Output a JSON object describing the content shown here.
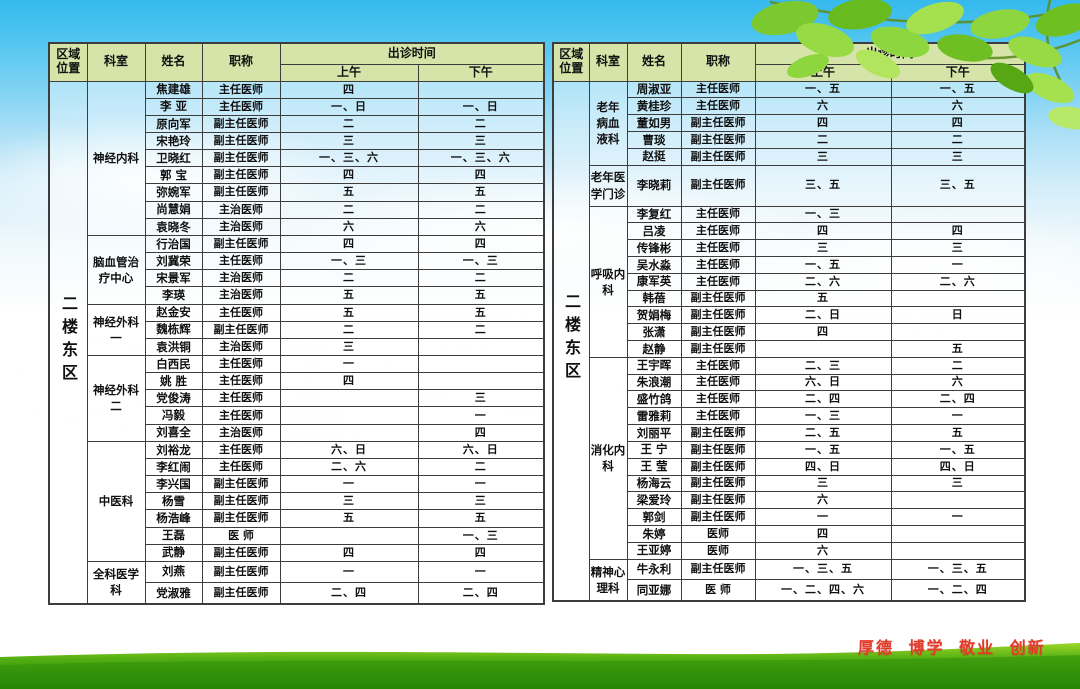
{
  "page": {
    "motto": "厚德 博学 敬业 创新"
  },
  "colors": {
    "header_bg": "#d6e4a9",
    "table_border": "#3d3d3d",
    "motto_red": "#e23b2b",
    "sky_top": "#35b9ed",
    "grass_green": "#3c9a0d",
    "leaf_green": "#7cc92f"
  },
  "table_headers": {
    "region": "区域\n位置",
    "dept": "科室",
    "name": "姓名",
    "title": "职称",
    "schedule": "出诊时间",
    "am": "上午",
    "pm": "下午"
  },
  "tables": [
    {
      "id": "left",
      "region": "二楼东区",
      "departments": [
        {
          "dept": "神经内科",
          "rows": [
            [
              "焦建雄",
              "主任医师",
              "四",
              ""
            ],
            [
              "李 亚",
              "主任医师",
              "一、日",
              "一、日"
            ],
            [
              "原向军",
              "副主任医师",
              "二",
              "二"
            ],
            [
              "宋艳玲",
              "副主任医师",
              "三",
              "三"
            ],
            [
              "卫晓红",
              "副主任医师",
              "一、三、六",
              "一、三、六"
            ],
            [
              "郭 宝",
              "副主任医师",
              "四",
              "四"
            ],
            [
              "弥婉军",
              "副主任医师",
              "五",
              "五"
            ],
            [
              "尚慧娟",
              "主治医师",
              "二",
              "二"
            ],
            [
              "袁晓冬",
              "主治医师",
              "六",
              "六"
            ]
          ]
        },
        {
          "dept": "脑血管治\n疗中心",
          "rows": [
            [
              "行治国",
              "副主任医师",
              "四",
              "四"
            ],
            [
              "刘冀荣",
              "主任医师",
              "一、三",
              "一、三"
            ],
            [
              "宋景军",
              "主治医师",
              "二",
              "二"
            ],
            [
              "李瑛",
              "主治医师",
              "五",
              "五"
            ]
          ]
        },
        {
          "dept": "神经外科\n一",
          "rows": [
            [
              "赵金安",
              "主任医师",
              "五",
              "五"
            ],
            [
              "魏栋辉",
              "副主任医师",
              "二",
              "二"
            ],
            [
              "袁洪铜",
              "主治医师",
              "三",
              ""
            ]
          ]
        },
        {
          "dept": "神经外科\n二",
          "rows": [
            [
              "白西民",
              "主任医师",
              "一",
              ""
            ],
            [
              "姚 胜",
              "主任医师",
              "四",
              ""
            ],
            [
              "党俊涛",
              "主任医师",
              "",
              "三"
            ],
            [
              "冯毅",
              "主任医师",
              "",
              "一"
            ],
            [
              "刘喜全",
              "主治医师",
              "",
              "四"
            ]
          ]
        },
        {
          "dept": "中医科",
          "rows": [
            [
              "刘裕龙",
              "主任医师",
              "六、日",
              "六、日"
            ],
            [
              "李红闹",
              "主任医师",
              "二、六",
              "二"
            ],
            [
              "李兴国",
              "副主任医师",
              "一",
              "一"
            ],
            [
              "杨雪",
              "副主任医师",
              "三",
              "三"
            ],
            [
              "杨浩峰",
              "副主任医师",
              "五",
              "五"
            ],
            [
              "王磊",
              "医 师",
              "",
              "一、三"
            ],
            [
              "武静",
              "副主任医师",
              "四",
              "四"
            ]
          ]
        },
        {
          "dept": "全科医学\n科",
          "rows": [
            [
              "刘燕",
              "副主任医师",
              "一",
              "一"
            ],
            [
              "党淑雅",
              "副主任医师",
              "二、四",
              "二、四"
            ]
          ]
        }
      ]
    },
    {
      "id": "right",
      "region": "二楼东区",
      "departments": [
        {
          "dept": "老年\n病血\n液科",
          "rows": [
            [
              "周淑亚",
              "主任医师",
              "一、五",
              "一、五"
            ],
            [
              "黄桂珍",
              "主任医师",
              "六",
              "六"
            ],
            [
              "董如男",
              "副主任医师",
              "四",
              "四"
            ],
            [
              "曹琰",
              "副主任医师",
              "二",
              "二"
            ],
            [
              "赵挺",
              "副主任医师",
              "三",
              "三"
            ]
          ]
        },
        {
          "dept": "老年医\n学门诊",
          "rows": [
            [
              "李晓莉",
              "副主任医师",
              "三、五",
              "三、五"
            ]
          ]
        },
        {
          "dept": "呼吸内\n科",
          "rows": [
            [
              "李复红",
              "主任医师",
              "一、三",
              ""
            ],
            [
              "吕凌",
              "主任医师",
              "四",
              "四"
            ],
            [
              "传锋彬",
              "主任医师",
              "三",
              "三"
            ],
            [
              "吴水淼",
              "主任医师",
              "一、五",
              "一"
            ],
            [
              "康军英",
              "主任医师",
              "二、六",
              "二、六"
            ],
            [
              "韩蓓",
              "副主任医师",
              "五",
              ""
            ],
            [
              "贺娟梅",
              "副主任医师",
              "二、日",
              "日"
            ],
            [
              "张潇",
              "副主任医师",
              "四",
              ""
            ],
            [
              "赵静",
              "副主任医师",
              "",
              "五"
            ]
          ]
        },
        {
          "dept": "消化内\n科",
          "rows": [
            [
              "王宇晖",
              "主任医师",
              "二、三",
              "二"
            ],
            [
              "朱浪潮",
              "主任医师",
              "六、日",
              "六"
            ],
            [
              "盛竹鸽",
              "主任医师",
              "二、四",
              "二、四"
            ],
            [
              "雷雅莉",
              "主任医师",
              "一、三",
              "一"
            ],
            [
              "刘丽平",
              "副主任医师",
              "二、五",
              "五"
            ],
            [
              "王 宁",
              "副主任医师",
              "一、五",
              "一、五"
            ],
            [
              "王 莹",
              "副主任医师",
              "四、日",
              "四、日"
            ],
            [
              "杨海云",
              "副主任医师",
              "三",
              "三"
            ],
            [
              "梁爱玲",
              "副主任医师",
              "六",
              ""
            ],
            [
              "郭剑",
              "副主任医师",
              "一",
              "一"
            ],
            [
              "朱婷",
              "医师",
              "四",
              ""
            ],
            [
              "王亚婷",
              "医师",
              "六",
              ""
            ]
          ]
        },
        {
          "dept": "精神心\n理科",
          "rows": [
            [
              "牛永利",
              "副主任医师",
              "一、三、五",
              "一、三、五"
            ],
            [
              "同亚娜",
              "医 师",
              "一、二、四、六",
              "一、二、四"
            ]
          ]
        }
      ]
    }
  ]
}
